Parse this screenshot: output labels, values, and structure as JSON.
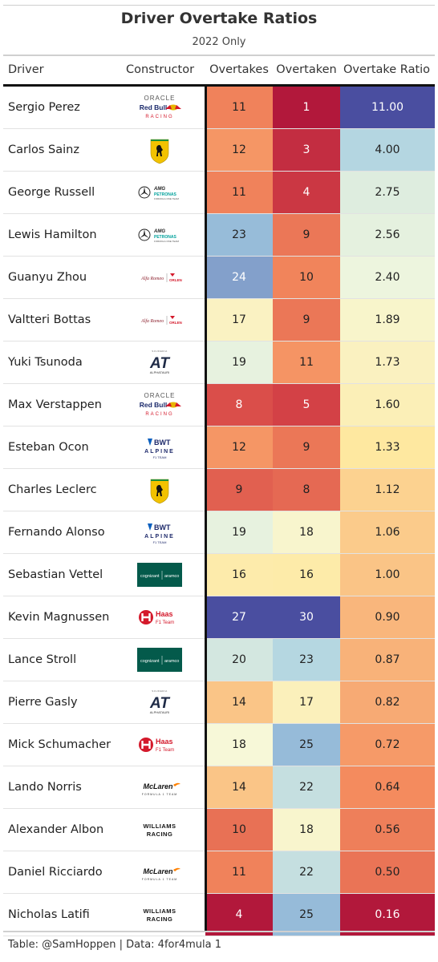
{
  "chart_data": {
    "type": "table",
    "title": "Driver Overtake Ratios",
    "subtitle": "2022 Only",
    "columns": [
      "Driver",
      "Constructor",
      "Overtakes",
      "Overtaken",
      "Overtake Ratio"
    ],
    "rows": [
      {
        "driver": "Sergio Perez",
        "constructor": "red-bull-logo",
        "overtakes": 11,
        "overtaken": 1,
        "ratio": "11.00"
      },
      {
        "driver": "Carlos Sainz",
        "constructor": "ferrari-logo",
        "overtakes": 12,
        "overtaken": 3,
        "ratio": "4.00"
      },
      {
        "driver": "George Russell",
        "constructor": "mercedes-logo",
        "overtakes": 11,
        "overtaken": 4,
        "ratio": "2.75"
      },
      {
        "driver": "Lewis Hamilton",
        "constructor": "mercedes-logo",
        "overtakes": 23,
        "overtaken": 9,
        "ratio": "2.56"
      },
      {
        "driver": "Guanyu Zhou",
        "constructor": "alfa-romeo-logo",
        "overtakes": 24,
        "overtaken": 10,
        "ratio": "2.40"
      },
      {
        "driver": "Valtteri Bottas",
        "constructor": "alfa-romeo-logo",
        "overtakes": 17,
        "overtaken": 9,
        "ratio": "1.89"
      },
      {
        "driver": "Yuki Tsunoda",
        "constructor": "alphatauri-logo",
        "overtakes": 19,
        "overtaken": 11,
        "ratio": "1.73"
      },
      {
        "driver": "Max Verstappen",
        "constructor": "red-bull-logo",
        "overtakes": 8,
        "overtaken": 5,
        "ratio": "1.60"
      },
      {
        "driver": "Esteban Ocon",
        "constructor": "alpine-logo",
        "overtakes": 12,
        "overtaken": 9,
        "ratio": "1.33"
      },
      {
        "driver": "Charles Leclerc",
        "constructor": "ferrari-logo",
        "overtakes": 9,
        "overtaken": 8,
        "ratio": "1.12"
      },
      {
        "driver": "Fernando Alonso",
        "constructor": "alpine-logo",
        "overtakes": 19,
        "overtaken": 18,
        "ratio": "1.06"
      },
      {
        "driver": "Sebastian Vettel",
        "constructor": "aston-martin-logo",
        "overtakes": 16,
        "overtaken": 16,
        "ratio": "1.00"
      },
      {
        "driver": "Kevin Magnussen",
        "constructor": "haas-logo",
        "overtakes": 27,
        "overtaken": 30,
        "ratio": "0.90"
      },
      {
        "driver": "Lance Stroll",
        "constructor": "aston-martin-logo",
        "overtakes": 20,
        "overtaken": 23,
        "ratio": "0.87"
      },
      {
        "driver": "Pierre Gasly",
        "constructor": "alphatauri-logo",
        "overtakes": 14,
        "overtaken": 17,
        "ratio": "0.82"
      },
      {
        "driver": "Mick Schumacher",
        "constructor": "haas-logo",
        "overtakes": 18,
        "overtaken": 25,
        "ratio": "0.72"
      },
      {
        "driver": "Lando Norris",
        "constructor": "mclaren-logo",
        "overtakes": 14,
        "overtaken": 22,
        "ratio": "0.64"
      },
      {
        "driver": "Alexander Albon",
        "constructor": "williams-logo",
        "overtakes": 10,
        "overtaken": 18,
        "ratio": "0.56"
      },
      {
        "driver": "Daniel Ricciardo",
        "constructor": "mclaren-logo",
        "overtakes": 11,
        "overtaken": 22,
        "ratio": "0.50"
      },
      {
        "driver": "Nicholas Latifi",
        "constructor": "williams-logo",
        "overtakes": 4,
        "overtaken": 25,
        "ratio": "0.16"
      }
    ],
    "color_scale": {
      "low": "#b2183b",
      "mid": "#ffffd4",
      "high": "#4a4ea0"
    },
    "source": "Table: @SamHoppen | Data: 4for4mula 1"
  },
  "logo_text": {
    "red_bull": {
      "line1": "ORACLE",
      "line2": "Red Bull",
      "line3": "RACING"
    },
    "mercedes": {
      "line1": "AMG",
      "line2": "PETRONAS",
      "line3": "FORMULA ONE TEAM"
    },
    "alfa_romeo": {
      "line1": "Alfa Romeo",
      "line2": "ORLEN"
    },
    "alphatauri": {
      "line1": "SCUDERIA",
      "line2": "AT",
      "line3": "ALPHATAURI"
    },
    "alpine": {
      "line1": "BWT",
      "line2": "ALPINE",
      "line3": "F1 TEAM"
    },
    "aston_martin": {
      "line1": "cognizant",
      "line2": "aramco"
    },
    "haas": {
      "line1": "Haas",
      "line2": "F1 Team"
    },
    "mclaren": {
      "line1": "McLaren",
      "line2": "FORMULA 1 TEAM"
    },
    "williams": {
      "line1": "WILLIAMS",
      "line2": "RACING"
    }
  }
}
